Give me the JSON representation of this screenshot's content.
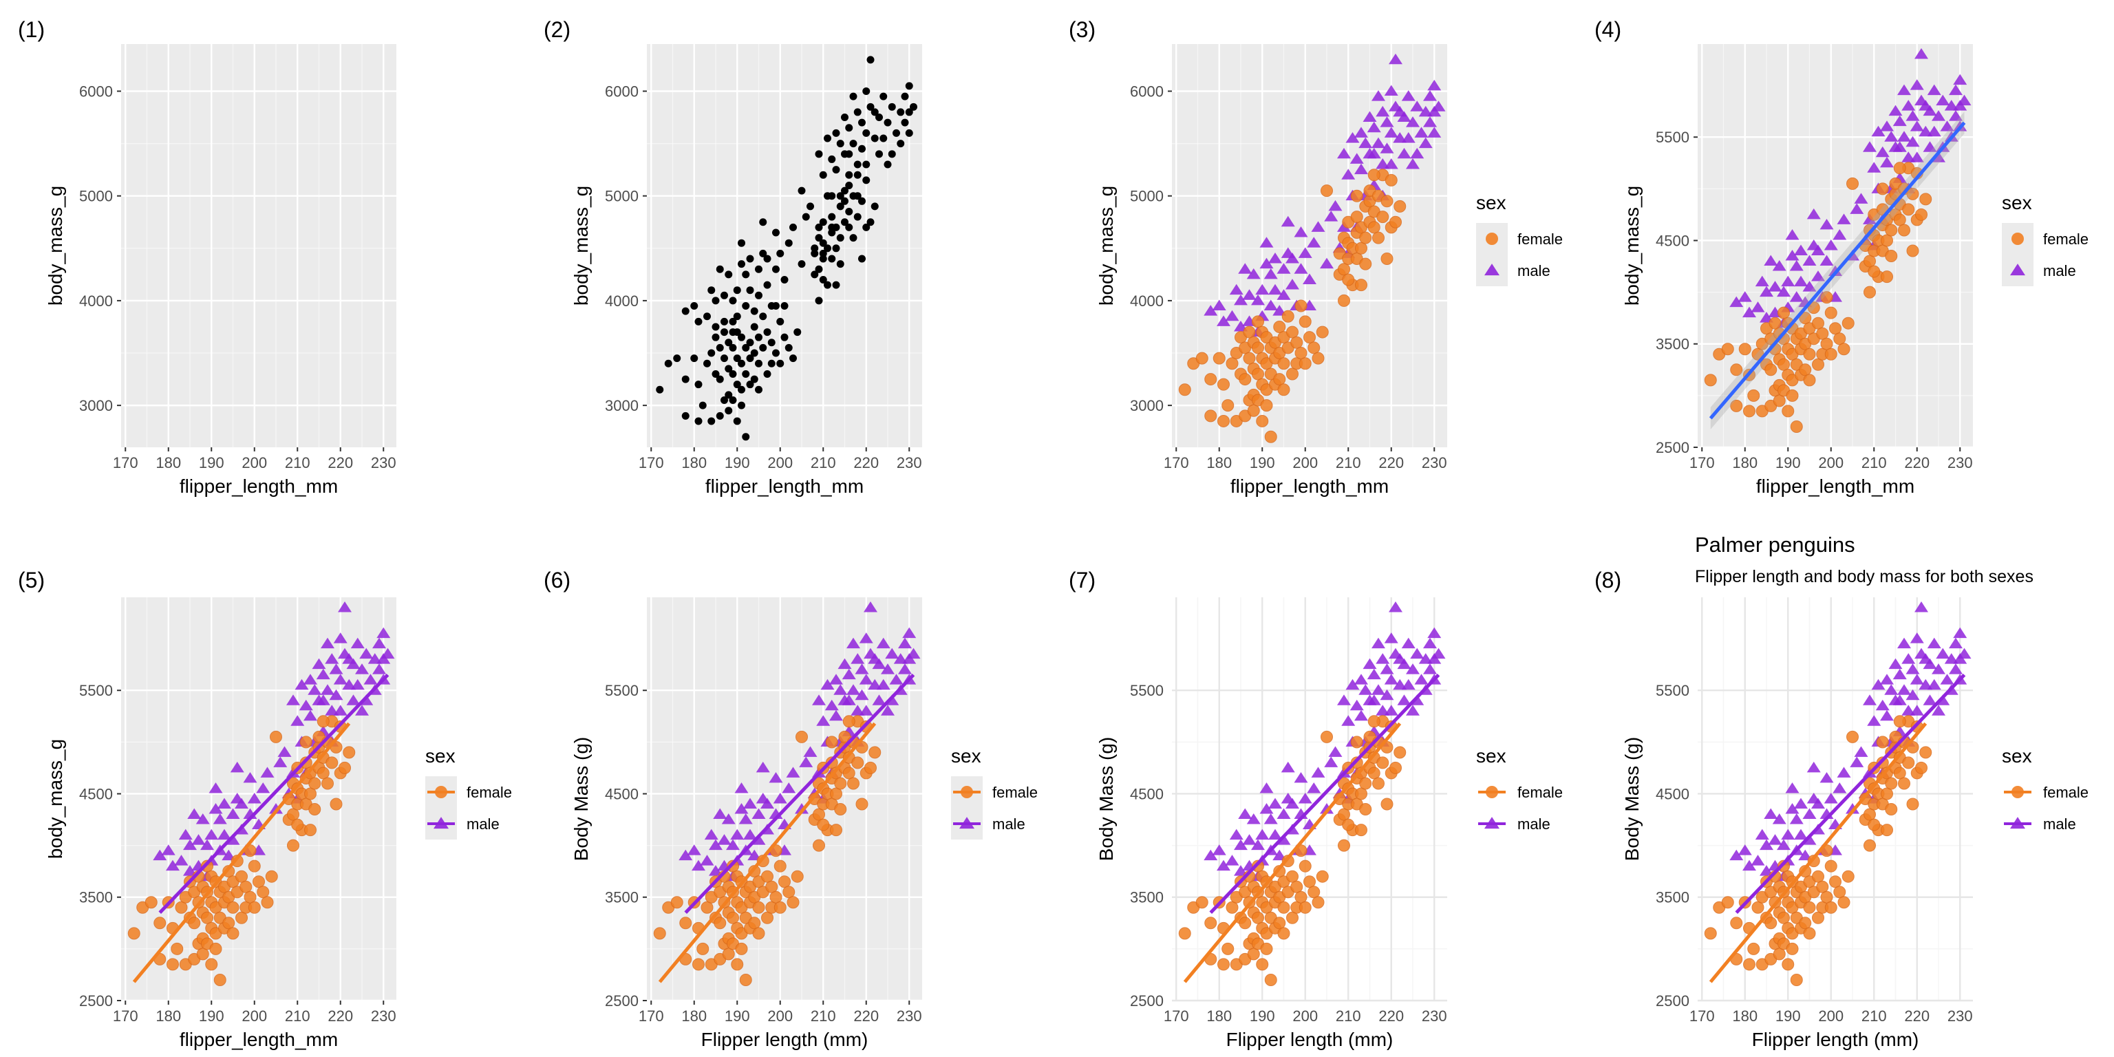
{
  "figure": {
    "colors": {
      "panel_bg": "#ebebeb",
      "grid_major": "#ffffff",
      "grid_minor": "#f5f5f5",
      "point_black": "#000000",
      "female": "#f28022",
      "male": "#9025dc",
      "overall_fit": "#3366ff",
      "fit_band": "#aaaaaa"
    }
  },
  "chart_data": [
    {
      "panel_label": "(1)",
      "type": "scatter",
      "mode": "empty",
      "theme": "gray",
      "title": "",
      "subtitle": "",
      "xlabel": "flipper_length_mm",
      "ylabel": "body_mass_g",
      "xlim": [
        169,
        233
      ],
      "ylim": [
        2600,
        6450
      ],
      "xticks": [
        170,
        180,
        190,
        200,
        210,
        220,
        230
      ],
      "yticks": [
        3000,
        4000,
        5000,
        6000
      ],
      "legend": null,
      "fit": "none"
    },
    {
      "panel_label": "(2)",
      "type": "scatter",
      "mode": "black",
      "theme": "gray",
      "title": "",
      "subtitle": "",
      "xlabel": "flipper_length_mm",
      "ylabel": "body_mass_g",
      "xlim": [
        169,
        233
      ],
      "ylim": [
        2600,
        6450
      ],
      "xticks": [
        170,
        180,
        190,
        200,
        210,
        220,
        230
      ],
      "yticks": [
        3000,
        4000,
        5000,
        6000
      ],
      "legend": null,
      "fit": "none"
    },
    {
      "panel_label": "(3)",
      "type": "scatter",
      "mode": "sex",
      "theme": "gray",
      "title": "",
      "subtitle": "",
      "xlabel": "flipper_length_mm",
      "ylabel": "body_mass_g",
      "xlim": [
        169,
        233
      ],
      "ylim": [
        2600,
        6450
      ],
      "xticks": [
        170,
        180,
        190,
        200,
        210,
        220,
        230
      ],
      "yticks": [
        3000,
        4000,
        5000,
        6000
      ],
      "legend": {
        "title": "sex",
        "entries": [
          "female",
          "male"
        ],
        "style": "points",
        "position": "right"
      },
      "fit": "none"
    },
    {
      "panel_label": "(4)",
      "type": "scatter",
      "mode": "sex",
      "theme": "gray",
      "title": "",
      "subtitle": "",
      "xlabel": "flipper_length_mm",
      "ylabel": "body_mass_g",
      "xlim": [
        169,
        233
      ],
      "ylim": [
        2500,
        6400
      ],
      "xticks": [
        170,
        180,
        190,
        200,
        210,
        220,
        230
      ],
      "yticks": [
        2500,
        3500,
        4500,
        5500
      ],
      "legend": {
        "title": "sex",
        "entries": [
          "female",
          "male"
        ],
        "style": "points",
        "position": "right"
      },
      "fit": "overall",
      "fit_lines": {
        "overall": [
          [
            172,
            2780
          ],
          [
            231,
            5640
          ]
        ]
      }
    },
    {
      "panel_label": "(5)",
      "type": "scatter",
      "mode": "sex",
      "theme": "gray",
      "title": "",
      "subtitle": "",
      "xlabel": "flipper_length_mm",
      "ylabel": "body_mass_g",
      "xlim": [
        169,
        233
      ],
      "ylim": [
        2500,
        6400
      ],
      "xticks": [
        170,
        180,
        190,
        200,
        210,
        220,
        230
      ],
      "yticks": [
        2500,
        3500,
        4500,
        5500
      ],
      "legend": {
        "title": "sex",
        "entries": [
          "female",
          "male"
        ],
        "style": "lines",
        "position": "right"
      },
      "fit": "by_sex",
      "fit_lines": {
        "female": [
          [
            172,
            2680
          ],
          [
            222,
            5180
          ]
        ],
        "male": [
          [
            178,
            3350
          ],
          [
            231,
            5650
          ]
        ]
      }
    },
    {
      "panel_label": "(6)",
      "type": "scatter",
      "mode": "sex",
      "theme": "gray",
      "title": "",
      "subtitle": "",
      "xlabel": "Flipper length (mm)",
      "ylabel": "Body Mass (g)",
      "xlim": [
        169,
        233
      ],
      "ylim": [
        2500,
        6400
      ],
      "xticks": [
        170,
        180,
        190,
        200,
        210,
        220,
        230
      ],
      "yticks": [
        2500,
        3500,
        4500,
        5500
      ],
      "legend": {
        "title": "sex",
        "entries": [
          "female",
          "male"
        ],
        "style": "lines",
        "position": "right"
      },
      "fit": "by_sex",
      "fit_lines": {
        "female": [
          [
            172,
            2680
          ],
          [
            222,
            5180
          ]
        ],
        "male": [
          [
            178,
            3350
          ],
          [
            231,
            5650
          ]
        ]
      }
    },
    {
      "panel_label": "(7)",
      "type": "scatter",
      "mode": "sex",
      "theme": "minimal",
      "title": "",
      "subtitle": "",
      "xlabel": "Flipper length (mm)",
      "ylabel": "Body Mass (g)",
      "xlim": [
        169,
        233
      ],
      "ylim": [
        2500,
        6400
      ],
      "xticks": [
        170,
        180,
        190,
        200,
        210,
        220,
        230
      ],
      "yticks": [
        2500,
        3500,
        4500,
        5500
      ],
      "legend": {
        "title": "sex",
        "entries": [
          "female",
          "male"
        ],
        "style": "lines",
        "position": "right"
      },
      "fit": "by_sex",
      "fit_lines": {
        "female": [
          [
            172,
            2680
          ],
          [
            222,
            5180
          ]
        ],
        "male": [
          [
            178,
            3350
          ],
          [
            231,
            5650
          ]
        ]
      }
    },
    {
      "panel_label": "(8)",
      "type": "scatter",
      "mode": "sex",
      "theme": "minimal",
      "title": "Palmer penguins",
      "subtitle": "Flipper length and body mass for both sexes",
      "xlabel": "Flipper length (mm)",
      "ylabel": "Body Mass (g)",
      "xlim": [
        169,
        233
      ],
      "ylim": [
        2500,
        6400
      ],
      "xticks": [
        170,
        180,
        190,
        200,
        210,
        220,
        230
      ],
      "yticks": [
        2500,
        3500,
        4500,
        5500
      ],
      "legend": {
        "title": "sex",
        "entries": [
          "female",
          "male"
        ],
        "style": "lines",
        "position": "right"
      },
      "fit": "by_sex",
      "fit_lines": {
        "female": [
          [
            172,
            2680
          ],
          [
            222,
            5180
          ]
        ],
        "male": [
          [
            178,
            3350
          ],
          [
            231,
            5650
          ]
        ]
      }
    }
  ],
  "points": {
    "female": [
      [
        172,
        3150
      ],
      [
        174,
        3400
      ],
      [
        176,
        3450
      ],
      [
        178,
        2900
      ],
      [
        178,
        3250
      ],
      [
        180,
        3450
      ],
      [
        181,
        3200
      ],
      [
        181,
        2850
      ],
      [
        182,
        3000
      ],
      [
        183,
        3400
      ],
      [
        184,
        3500
      ],
      [
        184,
        2850
      ],
      [
        185,
        3650
      ],
      [
        185,
        3300
      ],
      [
        186,
        3550
      ],
      [
        186,
        3250
      ],
      [
        186,
        2900
      ],
      [
        187,
        3700
      ],
      [
        187,
        3450
      ],
      [
        187,
        3050
      ],
      [
        188,
        3600
      ],
      [
        188,
        3350
      ],
      [
        188,
        3100
      ],
      [
        188,
        2950
      ],
      [
        189,
        3800
      ],
      [
        189,
        3550
      ],
      [
        189,
        3300
      ],
      [
        189,
        3050
      ],
      [
        190,
        3700
      ],
      [
        190,
        3450
      ],
      [
        190,
        3200
      ],
      [
        190,
        2850
      ],
      [
        191,
        3650
      ],
      [
        191,
        3400
      ],
      [
        191,
        3150
      ],
      [
        191,
        3000
      ],
      [
        192,
        3550
      ],
      [
        192,
        3300
      ],
      [
        192,
        2700
      ],
      [
        193,
        3600
      ],
      [
        193,
        3450
      ],
      [
        193,
        3200
      ],
      [
        194,
        3750
      ],
      [
        194,
        3500
      ],
      [
        194,
        3250
      ],
      [
        195,
        3650
      ],
      [
        195,
        3400
      ],
      [
        195,
        3150
      ],
      [
        196,
        3550
      ],
      [
        196,
        3850
      ],
      [
        197,
        3700
      ],
      [
        197,
        3300
      ],
      [
        198,
        3600
      ],
      [
        198,
        3400
      ],
      [
        199,
        3950
      ],
      [
        199,
        3500
      ],
      [
        200,
        3800
      ],
      [
        200,
        3400
      ],
      [
        201,
        3650
      ],
      [
        202,
        3550
      ],
      [
        203,
        3450
      ],
      [
        204,
        3700
      ],
      [
        205,
        5050
      ],
      [
        208,
        4250
      ],
      [
        208,
        4450
      ],
      [
        209,
        4600
      ],
      [
        209,
        4300
      ],
      [
        210,
        4750
      ],
      [
        210,
        4400
      ],
      [
        210,
        4550
      ],
      [
        211,
        4150
      ],
      [
        211,
        4500
      ],
      [
        212,
        4650
      ],
      [
        212,
        4400
      ],
      [
        212,
        4800
      ],
      [
        213,
        4700
      ],
      [
        213,
        4500
      ],
      [
        214,
        4900
      ],
      [
        214,
        4600
      ],
      [
        214,
        4350
      ],
      [
        215,
        4750
      ],
      [
        215,
        4950
      ],
      [
        215,
        5050
      ],
      [
        216,
        4700
      ],
      [
        216,
        4850
      ],
      [
        217,
        5000
      ],
      [
        217,
        4600
      ],
      [
        218,
        5200
      ],
      [
        218,
        4800
      ],
      [
        219,
        4950
      ],
      [
        220,
        5150
      ],
      [
        220,
        4700
      ],
      [
        222,
        4900
      ],
      [
        210,
        4200
      ],
      [
        209,
        4000
      ],
      [
        212,
        5000
      ],
      [
        216,
        5200
      ],
      [
        213,
        4150
      ],
      [
        219,
        4400
      ],
      [
        221,
        4750
      ]
    ],
    "male": [
      [
        178,
        3900
      ],
      [
        180,
        3950
      ],
      [
        181,
        3800
      ],
      [
        183,
        3850
      ],
      [
        184,
        4100
      ],
      [
        185,
        4000
      ],
      [
        185,
        3750
      ],
      [
        186,
        4300
      ],
      [
        187,
        4050
      ],
      [
        187,
        3800
      ],
      [
        188,
        4250
      ],
      [
        189,
        4000
      ],
      [
        189,
        3700
      ],
      [
        190,
        4100
      ],
      [
        190,
        3850
      ],
      [
        191,
        4350
      ],
      [
        191,
        4550
      ],
      [
        192,
        4250
      ],
      [
        192,
        3950
      ],
      [
        193,
        4400
      ],
      [
        193,
        4100
      ],
      [
        194,
        3900
      ],
      [
        195,
        4300
      ],
      [
        195,
        4050
      ],
      [
        196,
        4450
      ],
      [
        196,
        4750
      ],
      [
        197,
        4400
      ],
      [
        197,
        4150
      ],
      [
        198,
        3950
      ],
      [
        199,
        4300
      ],
      [
        199,
        4650
      ],
      [
        200,
        4450
      ],
      [
        201,
        4200
      ],
      [
        201,
        3950
      ],
      [
        202,
        4550
      ],
      [
        203,
        4700
      ],
      [
        205,
        4350
      ],
      [
        206,
        4800
      ],
      [
        207,
        4900
      ],
      [
        208,
        4500
      ],
      [
        209,
        4700
      ],
      [
        209,
        5400
      ],
      [
        210,
        5200
      ],
      [
        210,
        4450
      ],
      [
        211,
        5550
      ],
      [
        211,
        5000
      ],
      [
        212,
        5350
      ],
      [
        212,
        4700
      ],
      [
        213,
        5600
      ],
      [
        213,
        5250
      ],
      [
        214,
        5500
      ],
      [
        214,
        5000
      ],
      [
        215,
        5750
      ],
      [
        215,
        5400
      ],
      [
        216,
        5650
      ],
      [
        216,
        5100
      ],
      [
        217,
        5950
      ],
      [
        217,
        5500
      ],
      [
        218,
        5800
      ],
      [
        218,
        5300
      ],
      [
        219,
        5700
      ],
      [
        219,
        5450
      ],
      [
        220,
        6000
      ],
      [
        220,
        5600
      ],
      [
        221,
        5850
      ],
      [
        221,
        6300
      ],
      [
        222,
        5550
      ],
      [
        222,
        5800
      ],
      [
        223,
        5750
      ],
      [
        223,
        5400
      ],
      [
        224,
        5950
      ],
      [
        224,
        5550
      ],
      [
        225,
        5700
      ],
      [
        226,
        5850
      ],
      [
        226,
        5400
      ],
      [
        227,
        5600
      ],
      [
        228,
        5500
      ],
      [
        228,
        5800
      ],
      [
        229,
        5950
      ],
      [
        229,
        5700
      ],
      [
        230,
        6050
      ],
      [
        230,
        5600
      ],
      [
        231,
        5850
      ],
      [
        230,
        5800
      ],
      [
        225,
        5300
      ],
      [
        220,
        5300
      ],
      [
        218,
        5000
      ],
      [
        216,
        5400
      ]
    ]
  }
}
